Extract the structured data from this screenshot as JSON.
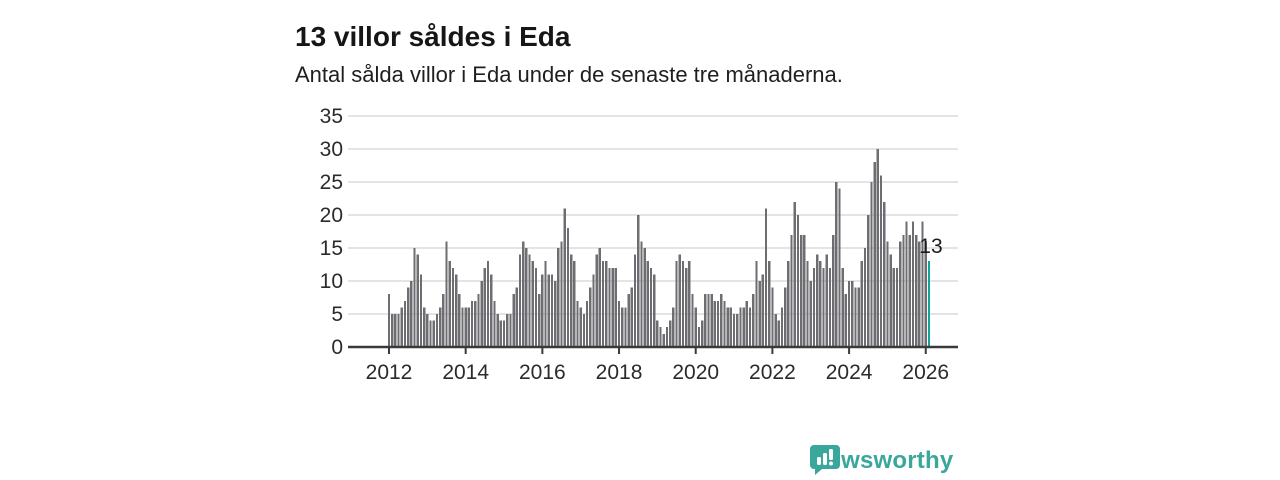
{
  "header": {
    "title": "13 villor såldes i Eda",
    "subtitle": "Antal sålda villor i Eda under de senaste tre månaderna."
  },
  "chart_data": {
    "type": "bar",
    "title": "13 villor såldes i Eda",
    "subtitle": "Antal sålda villor i Eda under de senaste tre månaderna.",
    "x_start": "2012-01",
    "x_frequency": "monthly",
    "x_tick_labels": [
      "2012",
      "2014",
      "2016",
      "2018",
      "2020",
      "2022",
      "2024",
      "2026"
    ],
    "y_ticks": [
      0,
      5,
      10,
      15,
      20,
      25,
      30,
      35
    ],
    "ylim": [
      0,
      35
    ],
    "grid": true,
    "values": [
      8,
      5,
      5,
      5,
      6,
      7,
      9,
      10,
      15,
      14,
      11,
      6,
      5,
      4,
      4,
      5,
      6,
      8,
      16,
      13,
      12,
      11,
      8,
      6,
      6,
      6,
      7,
      7,
      8,
      10,
      12,
      13,
      11,
      7,
      5,
      4,
      4,
      5,
      5,
      8,
      9,
      14,
      16,
      15,
      14,
      13,
      12,
      8,
      11,
      13,
      11,
      11,
      10,
      15,
      16,
      21,
      18,
      14,
      13,
      7,
      6,
      5,
      7,
      9,
      11,
      14,
      15,
      13,
      13,
      12,
      12,
      12,
      7,
      6,
      6,
      8,
      9,
      14,
      20,
      16,
      15,
      13,
      12,
      11,
      4,
      3,
      2,
      3,
      4,
      6,
      13,
      14,
      13,
      12,
      13,
      8,
      6,
      3,
      4,
      8,
      8,
      8,
      7,
      7,
      8,
      7,
      6,
      6,
      5,
      5,
      6,
      6,
      7,
      6,
      8,
      13,
      10,
      11,
      21,
      13,
      9,
      5,
      4,
      6,
      9,
      13,
      17,
      22,
      20,
      17,
      17,
      13,
      10,
      12,
      14,
      13,
      12,
      14,
      12,
      17,
      25,
      24,
      12,
      8,
      10,
      10,
      9,
      9,
      13,
      15,
      20,
      25,
      28,
      30,
      26,
      22,
      16,
      14,
      12,
      12,
      16,
      17,
      19,
      17,
      19,
      17,
      16,
      19,
      16,
      13
    ],
    "highlight_last": true,
    "last_value_label": "13",
    "bar_color": "#6e6e72",
    "highlight_color": "#14a39c",
    "grid_color": "#dcdcdc",
    "axis_color": "#3a3a3a",
    "tick_label_color": "#2b2b2b"
  },
  "footer": {
    "brand": "Newsworthy",
    "logo_icon": "bar-chart-speech-bubble-icon",
    "brand_color": "#3aa69c"
  }
}
